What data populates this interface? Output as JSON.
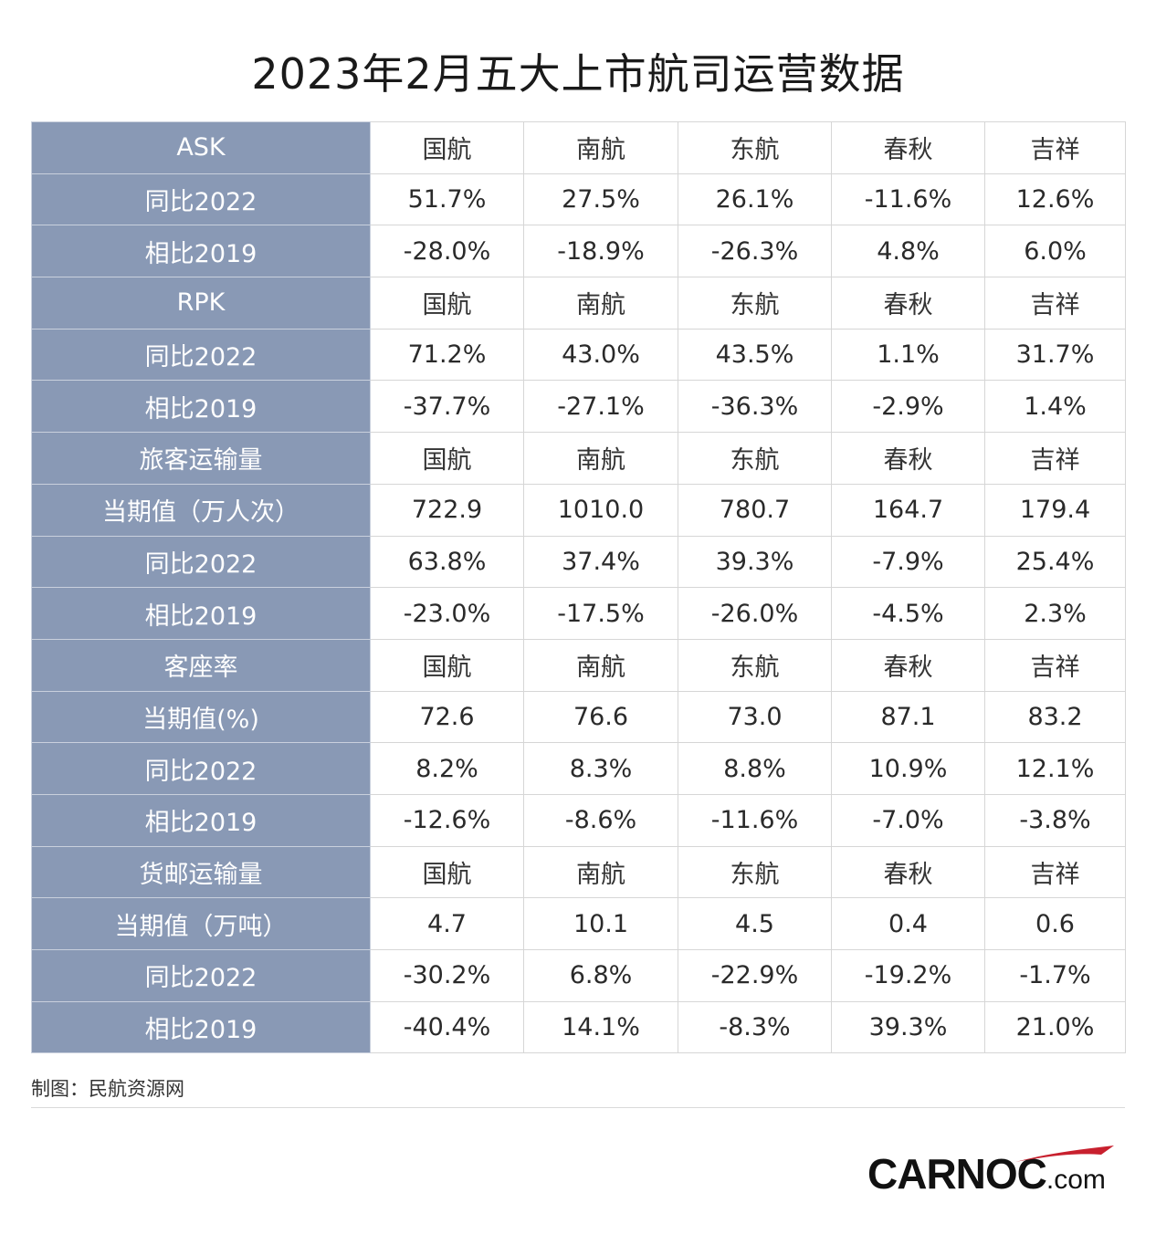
{
  "title": "2023年2月五大上市航司运营数据",
  "airlines": [
    "国航",
    "南航",
    "东航",
    "春秋",
    "吉祥"
  ],
  "sections": [
    {
      "header": "ASK",
      "rows": [
        {
          "label": "同比2022",
          "values": [
            "51.7%",
            "27.5%",
            "26.1%",
            "-11.6%",
            "12.6%"
          ]
        },
        {
          "label": "相比2019",
          "values": [
            "-28.0%",
            "-18.9%",
            "-26.3%",
            "4.8%",
            "6.0%"
          ]
        }
      ]
    },
    {
      "header": "RPK",
      "rows": [
        {
          "label": "同比2022",
          "values": [
            "71.2%",
            "43.0%",
            "43.5%",
            "1.1%",
            "31.7%"
          ]
        },
        {
          "label": "相比2019",
          "values": [
            "-37.7%",
            "-27.1%",
            "-36.3%",
            "-2.9%",
            "1.4%"
          ]
        }
      ]
    },
    {
      "header": "旅客运输量",
      "rows": [
        {
          "label": "当期值（万人次）",
          "values": [
            "722.9",
            "1010.0",
            "780.7",
            "164.7",
            "179.4"
          ]
        },
        {
          "label": "同比2022",
          "values": [
            "63.8%",
            "37.4%",
            "39.3%",
            "-7.9%",
            "25.4%"
          ]
        },
        {
          "label": "相比2019",
          "values": [
            "-23.0%",
            "-17.5%",
            "-26.0%",
            "-4.5%",
            "2.3%"
          ]
        }
      ]
    },
    {
      "header": "客座率",
      "rows": [
        {
          "label": "当期值(%)",
          "values": [
            "72.6",
            "76.6",
            "73.0",
            "87.1",
            "83.2"
          ]
        },
        {
          "label": "同比2022",
          "values": [
            "8.2%",
            "8.3%",
            "8.8%",
            "10.9%",
            "12.1%"
          ]
        },
        {
          "label": "相比2019",
          "values": [
            "-12.6%",
            "-8.6%",
            "-11.6%",
            "-7.0%",
            "-3.8%"
          ]
        }
      ]
    },
    {
      "header": "货邮运输量",
      "rows": [
        {
          "label": "当期值（万吨）",
          "values": [
            "4.7",
            "10.1",
            "4.5",
            "0.4",
            "0.6"
          ]
        },
        {
          "label": "同比2022",
          "values": [
            "-30.2%",
            "6.8%",
            "-22.9%",
            "-19.2%",
            "-1.7%"
          ]
        },
        {
          "label": "相比2019",
          "values": [
            "-40.4%",
            "14.1%",
            "-8.3%",
            "39.3%",
            "21.0%"
          ]
        }
      ]
    }
  ],
  "source": "制图：民航资源网",
  "logo": {
    "name": "CARNOC",
    "domain": ".com",
    "accent_color": "#c8202e"
  },
  "colors": {
    "label_bg": "#8999b5",
    "label_text": "#ffffff",
    "grid": "#d6d6d6"
  }
}
